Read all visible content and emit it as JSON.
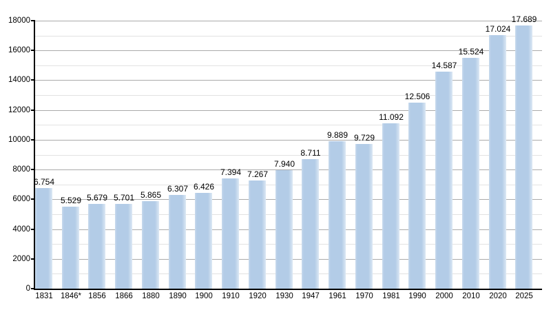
{
  "chart_data": {
    "type": "bar",
    "title": "",
    "xlabel": "",
    "ylabel": "",
    "categories": [
      "1831",
      "1846*",
      "1856",
      "1866",
      "1880",
      "1890",
      "1900",
      "1910",
      "1920",
      "1930",
      "1947",
      "1961",
      "1970",
      "1981",
      "1990",
      "2000",
      "2010",
      "2020",
      "2025"
    ],
    "values": [
      6754,
      5529,
      5679,
      5701,
      5865,
      6307,
      6426,
      7394,
      7267,
      7940,
      8711,
      9889,
      9729,
      11092,
      12506,
      14587,
      15524,
      17024,
      17689
    ],
    "value_labels": [
      "6.754",
      "5.529",
      "5.679",
      "5.701",
      "5.865",
      "6.307",
      "6.426",
      "7.394",
      "7.267",
      "7.940",
      "8.711",
      "9.889",
      "9.729",
      "11.092",
      "12.506",
      "14.587",
      "15.524",
      "17.024",
      "17.689"
    ],
    "y_tick_labels": [
      "0",
      "2000",
      "4000",
      "6000",
      "8000",
      "10000",
      "12000",
      "14000",
      "16000",
      "18000"
    ],
    "y_ticks": [
      0,
      2000,
      4000,
      6000,
      8000,
      10000,
      12000,
      14000,
      16000,
      18000
    ],
    "ylim": [
      0,
      18000
    ],
    "y_major_step": 2000,
    "y_minor_step": 1000,
    "grid": true,
    "legend": "none",
    "colors": {
      "bar_fill": "#b3cce7",
      "bar_edge_left": "#c9daed",
      "bar_edge_right": "#dce8f4",
      "gridline_major": "#aaaaaa",
      "gridline_minor": "#e2e2e2",
      "axis": "#000000",
      "text": "#000000",
      "background": "#ffffff"
    }
  }
}
